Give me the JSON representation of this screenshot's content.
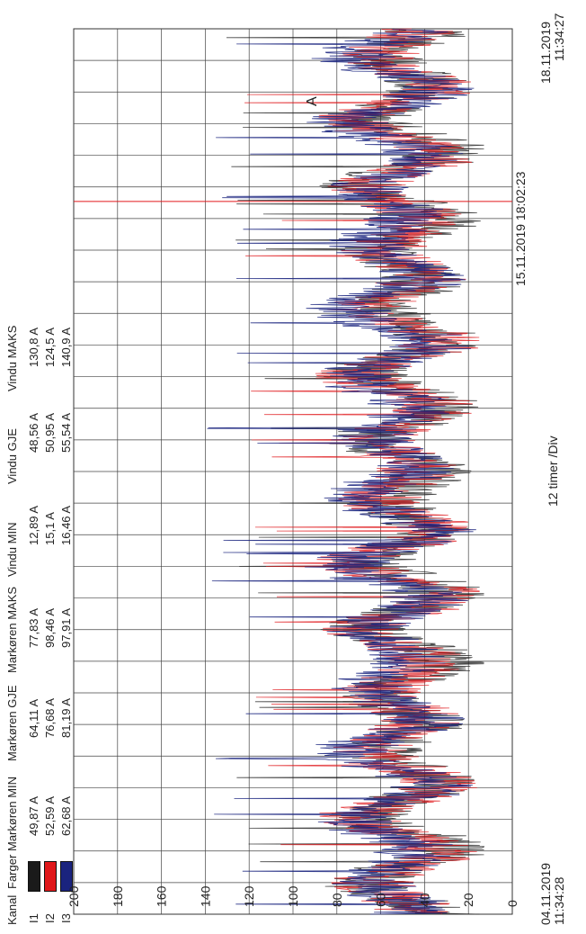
{
  "table": {
    "headers": [
      "Kanal",
      "Farger",
      "Markøren MIN",
      "Markøren GJE",
      "Markøren MAKS",
      "Vindu MIN",
      "Vindu GJE",
      "Vindu MAKS"
    ],
    "rows": [
      {
        "kanal": "I1",
        "color": "#1a1a1a",
        "markoren_min": "49,87 A",
        "markoren_gje": "64,11 A",
        "markoren_maks": "77,83 A",
        "vindu_min": "12,89 A",
        "vindu_gje": "48,56 A",
        "vindu_maks": "130,8 A"
      },
      {
        "kanal": "I2",
        "color": "#e0181b",
        "markoren_min": "52,59 A",
        "markoren_gje": "76,68 A",
        "markoren_maks": "98,46 A",
        "vindu_min": "15,1 A",
        "vindu_gje": "50,95 A",
        "vindu_maks": "124,5 A"
      },
      {
        "kanal": "I3",
        "color": "#1a237e",
        "markoren_min": "62,68 A",
        "markoren_gje": "81,19 A",
        "markoren_maks": "97,91 A",
        "vindu_min": "16,46 A",
        "vindu_gje": "55,54 A",
        "vindu_maks": "140,9 A"
      }
    ]
  },
  "chart_data": {
    "type": "line",
    "ylabel": "A",
    "xlabel": "12 timer /Div",
    "ylim": [
      0,
      200
    ],
    "y_ticks": [
      "0",
      "20",
      "40",
      "60",
      "80",
      "100",
      "120",
      "140",
      "160",
      "180",
      "200"
    ],
    "x_range_hours": [
      0,
      336
    ],
    "x_div_hours": 12,
    "x_start_label": {
      "date": "04.11.2019",
      "time": "11:34:28"
    },
    "x_end_label": {
      "date": "18.11.2019",
      "time": "11:34:27"
    },
    "cursor": {
      "label": "15.11.2019 18:02:23",
      "x_hours": 270.5,
      "color": "#e0181b"
    },
    "grid": true,
    "series": [
      {
        "name": "I1",
        "color": "#1a1a1a",
        "window_min": 12.89,
        "window_avg": 48.56,
        "window_max": 130.8
      },
      {
        "name": "I2",
        "color": "#e0181b",
        "window_min": 15.1,
        "window_avg": 50.95,
        "window_max": 124.5
      },
      {
        "name": "I3",
        "color": "#1a237e",
        "window_min": 16.46,
        "window_avg": 55.54,
        "window_max": 140.9
      }
    ]
  }
}
